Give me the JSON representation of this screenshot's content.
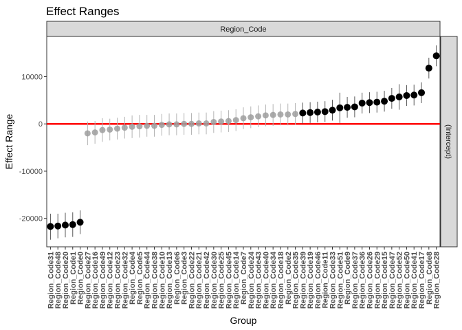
{
  "chart_data": {
    "type": "scatter",
    "title": "Effect Ranges",
    "xlabel": "Group",
    "ylabel": "Effect Range",
    "facet_top": "Region_Code",
    "facet_right": "(Intercept)",
    "ylim": [
      -26000,
      18500
    ],
    "yticks": [
      -20000,
      -10000,
      0,
      10000
    ],
    "yticklabels": [
      "-20000",
      "-10000",
      "0",
      "10000"
    ],
    "reference_line": 0,
    "colors": {
      "significant": "#000000",
      "not_significant": "#9e9e9e",
      "reference": "#ff0000",
      "strip_fill": "#d9d9d9"
    },
    "points": [
      {
        "group": "Region_Code31",
        "value": -21700,
        "lower": -24500,
        "upper": -19000,
        "significant": true
      },
      {
        "group": "Region_Code48",
        "value": -21600,
        "lower": -24200,
        "upper": -19000,
        "significant": true
      },
      {
        "group": "Region_Code20",
        "value": -21400,
        "lower": -24000,
        "upper": -18800,
        "significant": true
      },
      {
        "group": "Region_Code1",
        "value": -21300,
        "lower": -23900,
        "upper": -18700,
        "significant": true
      },
      {
        "group": "Region_Code0",
        "value": -20800,
        "lower": -23300,
        "upper": -18300,
        "significant": true
      },
      {
        "group": "Region_Code27",
        "value": -2000,
        "lower": -4500,
        "upper": 500,
        "significant": false
      },
      {
        "group": "Region_Code16",
        "value": -1800,
        "lower": -4200,
        "upper": 600,
        "significant": false
      },
      {
        "group": "Region_Code49",
        "value": -1300,
        "lower": -3800,
        "upper": 1200,
        "significant": false
      },
      {
        "group": "Region_Code12",
        "value": -1200,
        "lower": -3500,
        "upper": 1100,
        "significant": false
      },
      {
        "group": "Region_Code23",
        "value": -1000,
        "lower": -3300,
        "upper": 1300,
        "significant": false
      },
      {
        "group": "Region_Code32",
        "value": -800,
        "lower": -3100,
        "upper": 1500,
        "significant": false
      },
      {
        "group": "Region_Code4",
        "value": -600,
        "lower": -3000,
        "upper": 1800,
        "significant": false
      },
      {
        "group": "Region_Code5",
        "value": -500,
        "lower": -2900,
        "upper": 1900,
        "significant": false
      },
      {
        "group": "Region_Code44",
        "value": -400,
        "lower": -2700,
        "upper": 1900,
        "significant": false
      },
      {
        "group": "Region_Code38",
        "value": -400,
        "lower": -2700,
        "upper": 1900,
        "significant": false
      },
      {
        "group": "Region_Code10",
        "value": -200,
        "lower": -2500,
        "upper": 2100,
        "significant": false
      },
      {
        "group": "Region_Code13",
        "value": -100,
        "lower": -2400,
        "upper": 2200,
        "significant": false
      },
      {
        "group": "Region_Code6",
        "value": -100,
        "lower": -2400,
        "upper": 2200,
        "significant": false
      },
      {
        "group": "Region_Code3",
        "value": 0,
        "lower": -2300,
        "upper": 2300,
        "significant": false
      },
      {
        "group": "Region_Code22",
        "value": 0,
        "lower": -2300,
        "upper": 2300,
        "significant": false
      },
      {
        "group": "Region_Code21",
        "value": 100,
        "lower": -2200,
        "upper": 2400,
        "significant": false
      },
      {
        "group": "Region_Code42",
        "value": 100,
        "lower": -2200,
        "upper": 2400,
        "significant": false
      },
      {
        "group": "Region_Code30",
        "value": 400,
        "lower": -1900,
        "upper": 2700,
        "significant": false
      },
      {
        "group": "Region_Code25",
        "value": 500,
        "lower": -1800,
        "upper": 2800,
        "significant": false
      },
      {
        "group": "Region_Code45",
        "value": 600,
        "lower": -1700,
        "upper": 2900,
        "significant": false
      },
      {
        "group": "Region_Code14",
        "value": 800,
        "lower": -1500,
        "upper": 3100,
        "significant": false
      },
      {
        "group": "Region_Code7",
        "value": 1200,
        "lower": -1100,
        "upper": 3500,
        "significant": false
      },
      {
        "group": "Region_Code24",
        "value": 1400,
        "lower": -900,
        "upper": 3700,
        "significant": false
      },
      {
        "group": "Region_Code43",
        "value": 1600,
        "lower": -700,
        "upper": 3900,
        "significant": false
      },
      {
        "group": "Region_Code40",
        "value": 1800,
        "lower": -500,
        "upper": 4100,
        "significant": false
      },
      {
        "group": "Region_Code34",
        "value": 1900,
        "lower": -400,
        "upper": 4200,
        "significant": false
      },
      {
        "group": "Region_Code18",
        "value": 2000,
        "lower": -300,
        "upper": 4300,
        "significant": false
      },
      {
        "group": "Region_Code2",
        "value": 2000,
        "lower": -300,
        "upper": 4300,
        "significant": false
      },
      {
        "group": "Region_Code35",
        "value": 2100,
        "lower": -200,
        "upper": 4400,
        "significant": false
      },
      {
        "group": "Region_Code39",
        "value": 2300,
        "lower": 100,
        "upper": 4500,
        "significant": true
      },
      {
        "group": "Region_Code19",
        "value": 2400,
        "lower": 200,
        "upper": 4600,
        "significant": true
      },
      {
        "group": "Region_Code46",
        "value": 2500,
        "lower": 300,
        "upper": 4700,
        "significant": true
      },
      {
        "group": "Region_Code11",
        "value": 2600,
        "lower": 400,
        "upper": 4800,
        "significant": true
      },
      {
        "group": "Region_Code33",
        "value": 2900,
        "lower": 700,
        "upper": 5100,
        "significant": true
      },
      {
        "group": "Region_Code51",
        "value": 3400,
        "lower": 200,
        "upper": 6600,
        "significant": true
      },
      {
        "group": "Region_Code9",
        "value": 3500,
        "lower": 1300,
        "upper": 5700,
        "significant": true
      },
      {
        "group": "Region_Code37",
        "value": 3600,
        "lower": 1400,
        "upper": 5800,
        "significant": true
      },
      {
        "group": "Region_Code36",
        "value": 4400,
        "lower": 2200,
        "upper": 6600,
        "significant": true
      },
      {
        "group": "Region_Code26",
        "value": 4500,
        "lower": 2300,
        "upper": 6700,
        "significant": true
      },
      {
        "group": "Region_Code29",
        "value": 4600,
        "lower": 2400,
        "upper": 6800,
        "significant": true
      },
      {
        "group": "Region_Code15",
        "value": 4800,
        "lower": 2600,
        "upper": 7000,
        "significant": true
      },
      {
        "group": "Region_Code47",
        "value": 5400,
        "lower": 3200,
        "upper": 7600,
        "significant": true
      },
      {
        "group": "Region_Code52",
        "value": 5700,
        "lower": 3000,
        "upper": 8400,
        "significant": true
      },
      {
        "group": "Region_Code50",
        "value": 6000,
        "lower": 3800,
        "upper": 8200,
        "significant": true
      },
      {
        "group": "Region_Code41",
        "value": 6100,
        "lower": 3900,
        "upper": 8300,
        "significant": true
      },
      {
        "group": "Region_Code17",
        "value": 6600,
        "lower": 4400,
        "upper": 8800,
        "significant": true
      },
      {
        "group": "Region_Code8",
        "value": 11800,
        "lower": 9600,
        "upper": 14000,
        "significant": true
      },
      {
        "group": "Region_Code28",
        "value": 14400,
        "lower": 12200,
        "upper": 16600,
        "significant": true
      }
    ]
  }
}
